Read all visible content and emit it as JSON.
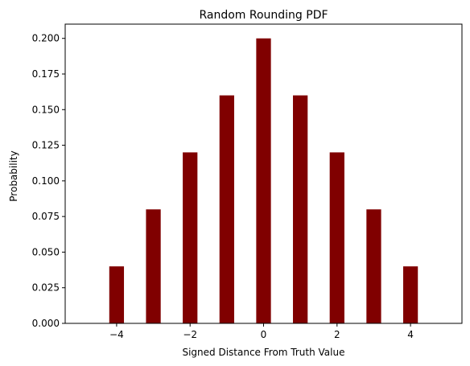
{
  "chart_data": {
    "type": "bar",
    "title": "Random Rounding PDF",
    "xlabel": "Signed Distance From Truth Value",
    "ylabel": "Probability",
    "x": [
      -4,
      -3,
      -2,
      -1,
      0,
      1,
      2,
      3,
      4
    ],
    "values": [
      0.04,
      0.08,
      0.12,
      0.16,
      0.2,
      0.16,
      0.12,
      0.08,
      0.04
    ],
    "bar_width": 0.4,
    "bar_color": "#800000",
    "xlim": [
      -5.4,
      5.4
    ],
    "ylim": [
      0,
      0.21
    ],
    "xticks": [
      -4,
      -2,
      0,
      2,
      4
    ],
    "xtick_labels": [
      "−4",
      "−2",
      "0",
      "2",
      "4"
    ],
    "yticks": [
      0,
      0.025,
      0.05,
      0.075,
      0.1,
      0.125,
      0.15,
      0.175,
      0.2
    ],
    "ytick_labels": [
      "0.000",
      "0.025",
      "0.050",
      "0.075",
      "0.100",
      "0.125",
      "0.150",
      "0.175",
      "0.200"
    ],
    "grid": false,
    "legend": "none"
  }
}
